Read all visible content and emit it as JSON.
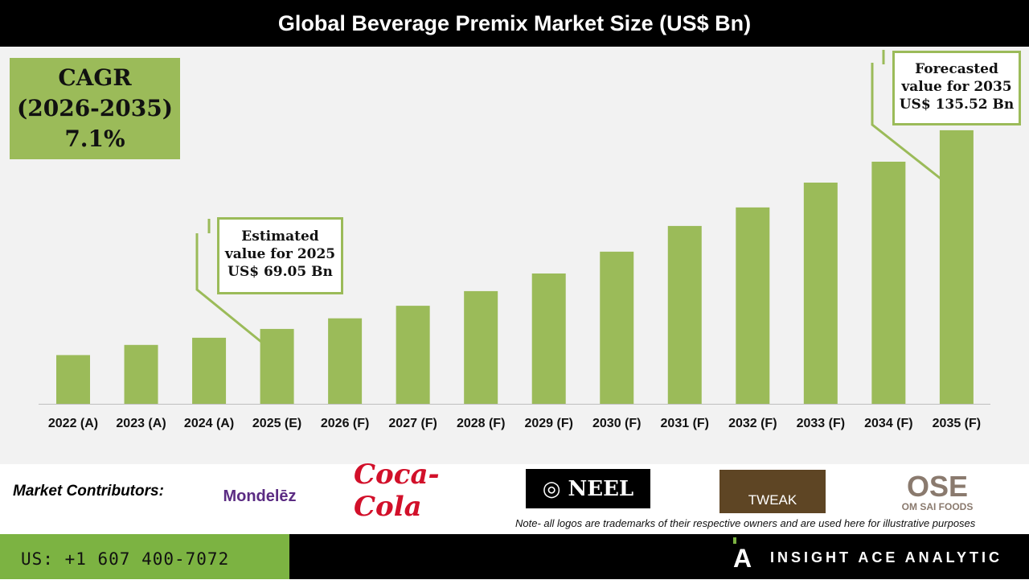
{
  "title": "Global Beverage Premix Market Size (US$ Bn)",
  "cagr": {
    "line1": "CAGR",
    "line2": "(2026-2035)",
    "line3": "7.1%"
  },
  "callouts": {
    "estimated": {
      "line1": "Estimated",
      "line2": "value for 2025",
      "line3": "US$ 69.05 Bn"
    },
    "forecasted": {
      "line1": "Forecasted",
      "line2": "value for 2035",
      "line3": "US$ 135.52 Bn"
    }
  },
  "chart_data": {
    "type": "bar",
    "title": "Global Beverage Premix Market Size (US$ Bn)",
    "categories": [
      "2022 (A)",
      "2023 (A)",
      "2024 (A)",
      "2025 (E)",
      "2026 (F)",
      "2027 (F)",
      "2028 (F)",
      "2029 (F)",
      "2030 (F)",
      "2031 (F)",
      "2032 (F)",
      "2033 (F)",
      "2034 (F)",
      "2035 (F)"
    ],
    "values": [
      60.3,
      63.7,
      66.1,
      69.05,
      72.6,
      76.8,
      81.7,
      87.6,
      94.9,
      103.5,
      109.7,
      118.0,
      125.0,
      135.52
    ],
    "ylim": [
      44,
      150
    ],
    "grid": false,
    "bar_color": "#9bbb59"
  },
  "contributors": {
    "label": "Market Contributors:",
    "logos": [
      "Mondelēz International",
      "Coca-Cola",
      "NEEL BEVERAGES",
      "TWEAK",
      "OSE OM SAI FOODS"
    ],
    "note": "Note- all logos are trademarks of their respective owners and are used here for illustrative purposes"
  },
  "footer": {
    "phone": "US: +1 607 400-7072",
    "brand": "INSIGHT ACE ANALYTIC"
  }
}
